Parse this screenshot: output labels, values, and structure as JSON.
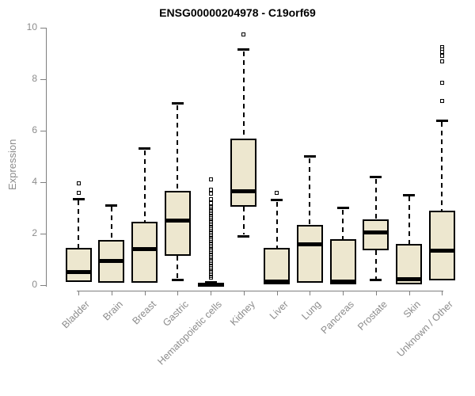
{
  "chart_data": {
    "type": "box",
    "title": "ENSG00000204978 - C19orf69",
    "ylabel": "Expression",
    "xlabel": "",
    "ylim": [
      0,
      10
    ],
    "yticks": [
      0,
      2,
      4,
      6,
      8,
      10
    ],
    "grid": false,
    "legend": "none",
    "colors": {
      "box_fill": "#ede7cf",
      "box_stroke": "#000000",
      "axis": "#7f7f7f",
      "tick_labels": "#8c8c8c",
      "title": "#000000",
      "background": "#ffffff"
    },
    "categories": [
      "Bladder",
      "Brain",
      "Breast",
      "Gastric",
      "Hematopoietic cells",
      "Kidney",
      "Liver",
      "Lung",
      "Pancreas",
      "Prostate",
      "Skin",
      "Unknown / Other"
    ],
    "boxes": [
      {
        "label": "Bladder",
        "whisker_low": 0.12,
        "q1": 0.12,
        "median": 0.5,
        "q3": 1.45,
        "whisker_high": 3.35,
        "outliers": [
          3.6,
          3.95
        ]
      },
      {
        "label": "Brain",
        "whisker_low": 0.1,
        "q1": 0.1,
        "median": 0.95,
        "q3": 1.75,
        "whisker_high": 3.1,
        "outliers": []
      },
      {
        "label": "Breast",
        "whisker_low": 0.1,
        "q1": 0.1,
        "median": 1.4,
        "q3": 2.45,
        "whisker_high": 5.3,
        "outliers": []
      },
      {
        "label": "Gastric",
        "whisker_low": 0.2,
        "q1": 1.15,
        "median": 2.5,
        "q3": 3.65,
        "whisker_high": 7.05,
        "outliers": []
      },
      {
        "label": "Hematopoietic cells",
        "whisker_low": 0.0,
        "q1": 0.0,
        "median": 0.03,
        "q3": 0.08,
        "whisker_high": 0.1,
        "outliers": [
          4.1,
          3.7,
          3.55,
          3.35
        ],
        "outlier_column": {
          "min": 0.3,
          "max": 3.2,
          "count": 55
        }
      },
      {
        "label": "Kidney",
        "whisker_low": 1.9,
        "q1": 3.05,
        "median": 3.65,
        "q3": 5.7,
        "whisker_high": 9.15,
        "outliers": [
          9.75
        ]
      },
      {
        "label": "Liver",
        "whisker_low": 0.03,
        "q1": 0.03,
        "median": 0.15,
        "q3": 1.45,
        "whisker_high": 3.3,
        "outliers": [
          3.6
        ]
      },
      {
        "label": "Lung",
        "whisker_low": 0.08,
        "q1": 0.08,
        "median": 1.6,
        "q3": 2.35,
        "whisker_high": 5.0,
        "outliers": []
      },
      {
        "label": "Pancreas",
        "whisker_low": 0.03,
        "q1": 0.03,
        "median": 0.15,
        "q3": 1.8,
        "whisker_high": 3.0,
        "outliers": []
      },
      {
        "label": "Prostate",
        "whisker_low": 0.2,
        "q1": 1.35,
        "median": 2.05,
        "q3": 2.55,
        "whisker_high": 4.2,
        "outliers": []
      },
      {
        "label": "Skin",
        "whisker_low": 0.04,
        "q1": 0.04,
        "median": 0.22,
        "q3": 1.6,
        "whisker_high": 3.5,
        "outliers": []
      },
      {
        "label": "Unknown / Other",
        "whisker_low": 0.18,
        "q1": 0.18,
        "median": 1.35,
        "q3": 2.9,
        "whisker_high": 6.4,
        "outliers": [
          9.25,
          9.15,
          9.05,
          8.9,
          8.7,
          7.85,
          7.15
        ]
      }
    ]
  }
}
